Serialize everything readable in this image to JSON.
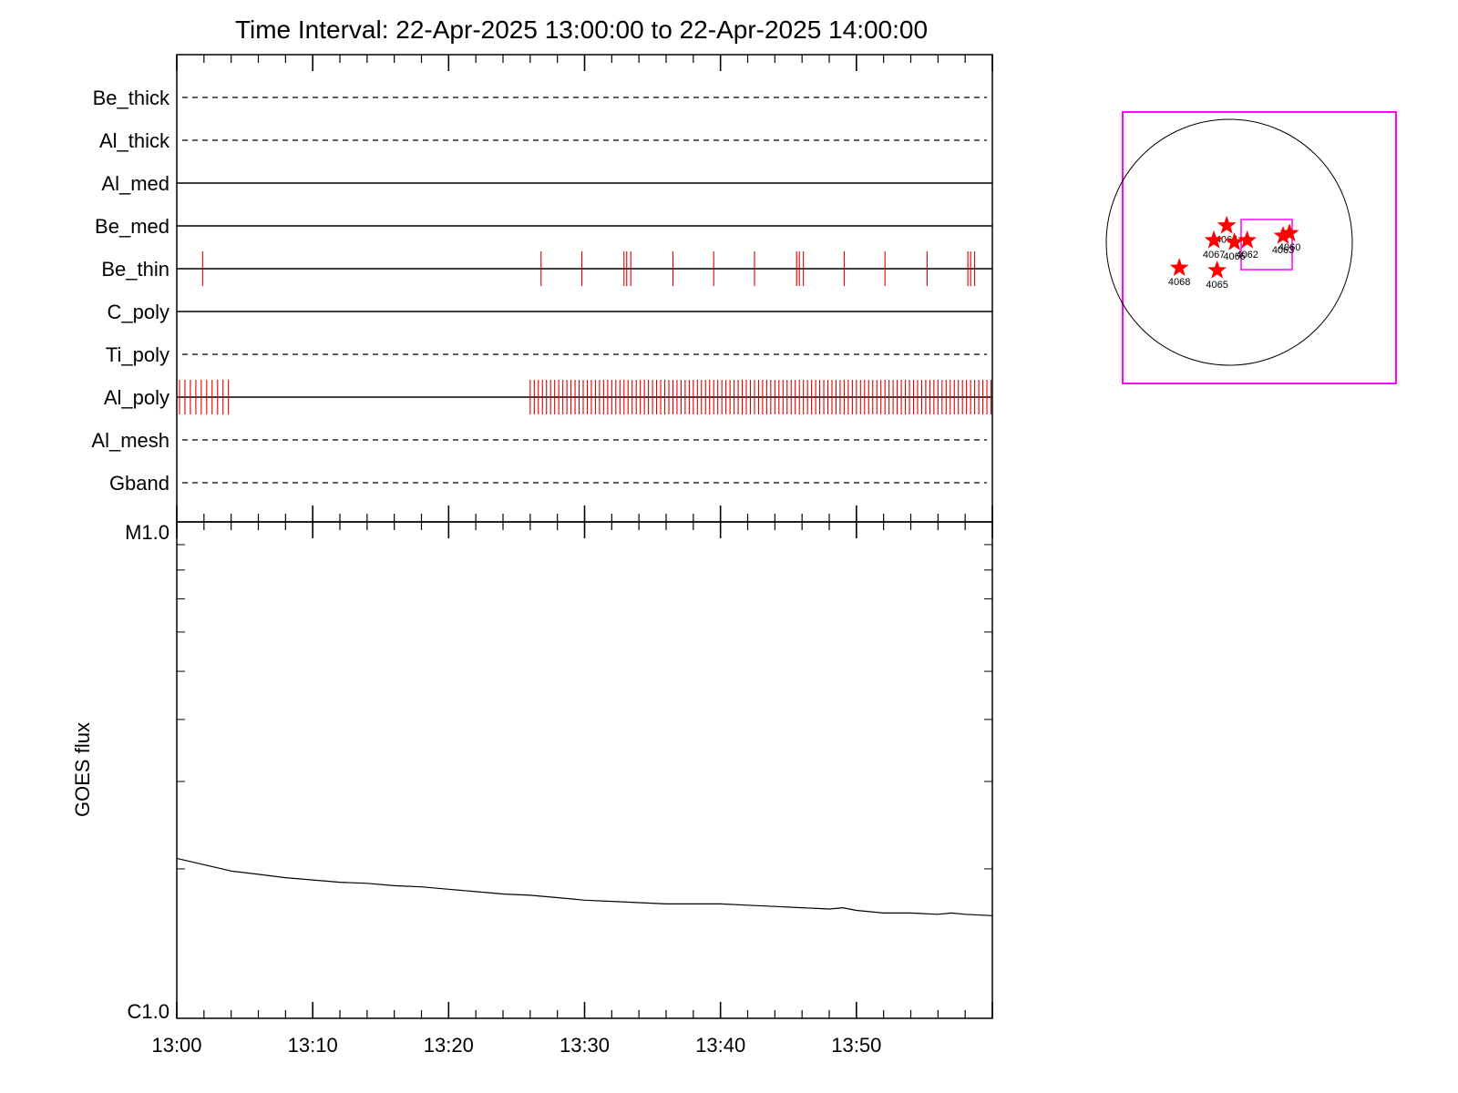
{
  "chart_data": [
    {
      "type": "timeline",
      "title": "Time Interval: 22-Apr-2025 13:00:00 to 22-Apr-2025 14:00:00",
      "xlim": [
        "13:00",
        "14:00"
      ],
      "channels": [
        {
          "name": "Be_thick",
          "style": "dashed",
          "events_min": []
        },
        {
          "name": "Al_thick",
          "style": "dashed",
          "events_min": []
        },
        {
          "name": "Al_med",
          "style": "solid",
          "events_min": []
        },
        {
          "name": "Be_med",
          "style": "solid",
          "events_min": []
        },
        {
          "name": "Be_thin",
          "style": "solid",
          "events_min": [
            1.9,
            26.8,
            29.8,
            32.9,
            33.1,
            33.4,
            36.5,
            39.5,
            42.5,
            45.6,
            45.8,
            46.1,
            49.1,
            52.1,
            55.2,
            58.2,
            58.4,
            58.7
          ]
        },
        {
          "name": "C_poly",
          "style": "solid",
          "events_min": []
        },
        {
          "name": "Ti_poly",
          "style": "dashed",
          "events_min": []
        },
        {
          "name": "Al_poly",
          "style": "solid",
          "events_min": [
            0.2,
            0.6,
            1.0,
            1.4,
            1.8,
            2.2,
            2.6,
            3.0,
            3.4,
            3.8,
            26.0,
            26.3,
            26.6,
            26.9,
            27.2,
            27.5,
            27.8,
            28.1,
            28.4,
            28.7,
            29.0,
            29.3,
            29.6,
            29.9,
            30.2,
            30.5,
            30.8,
            31.1,
            31.4,
            31.7,
            32.0,
            32.3,
            32.6,
            32.9,
            33.2,
            33.5,
            33.8,
            34.1,
            34.4,
            34.7,
            35.0,
            35.3,
            35.6,
            35.9,
            36.2,
            36.5,
            36.8,
            37.1,
            37.4,
            37.7,
            38.0,
            38.3,
            38.6,
            38.9,
            39.2,
            39.5,
            39.8,
            40.1,
            40.4,
            40.7,
            41.0,
            41.3,
            41.6,
            41.9,
            42.2,
            42.5,
            42.8,
            43.1,
            43.4,
            43.7,
            44.0,
            44.3,
            44.6,
            44.9,
            45.2,
            45.5,
            45.8,
            46.1,
            46.4,
            46.7,
            47.0,
            47.3,
            47.6,
            47.9,
            48.2,
            48.5,
            48.8,
            49.1,
            49.4,
            49.7,
            50.0,
            50.3,
            50.6,
            50.9,
            51.2,
            51.5,
            51.8,
            52.1,
            52.4,
            52.7,
            53.0,
            53.3,
            53.6,
            53.9,
            54.2,
            54.5,
            54.8,
            55.1,
            55.4,
            55.7,
            56.0,
            56.3,
            56.6,
            56.9,
            57.2,
            57.5,
            57.8,
            58.1,
            58.4,
            58.7,
            59.0,
            59.3,
            59.6,
            59.9
          ]
        },
        {
          "name": "Al_mesh",
          "style": "dashed",
          "events_min": []
        },
        {
          "name": "Gband",
          "style": "dashed",
          "events_min": []
        }
      ]
    },
    {
      "type": "line",
      "ylabel": "GOES flux",
      "yscale": "log",
      "ylim": [
        1e-06,
        1e-05
      ],
      "y_tick_labels": [
        "M1.0",
        "C1.0"
      ],
      "x_tick_labels": [
        "13:00",
        "13:10",
        "13:20",
        "13:30",
        "13:40",
        "13:50"
      ],
      "x_ticks_min": [
        0,
        10,
        20,
        30,
        40,
        50
      ],
      "xlim": [
        0,
        60
      ],
      "series": [
        {
          "x": [
            0,
            2,
            4,
            6,
            8,
            10,
            12,
            14,
            16,
            18,
            20,
            22,
            24,
            26,
            28,
            30,
            32,
            34,
            36,
            38,
            40,
            42,
            44,
            46,
            48,
            49,
            50,
            52,
            54,
            56,
            57,
            58,
            60
          ],
          "y": [
            2.1e-06,
            2.04e-06,
            1.98e-06,
            1.95e-06,
            1.92e-06,
            1.9e-06,
            1.88e-06,
            1.87e-06,
            1.85e-06,
            1.84e-06,
            1.82e-06,
            1.8e-06,
            1.78e-06,
            1.77e-06,
            1.75e-06,
            1.73e-06,
            1.72e-06,
            1.71e-06,
            1.7e-06,
            1.7e-06,
            1.7e-06,
            1.69e-06,
            1.68e-06,
            1.67e-06,
            1.66e-06,
            1.67e-06,
            1.65e-06,
            1.63e-06,
            1.63e-06,
            1.62e-06,
            1.63e-06,
            1.62e-06,
            1.61e-06
          ]
        }
      ]
    },
    {
      "type": "scatter",
      "subject": "solar disk",
      "markers": [
        {
          "label": "4064",
          "x": -20,
          "y": 130
        },
        {
          "label": "4067",
          "x": -120,
          "y": 15
        },
        {
          "label": "4066",
          "x": 40,
          "y": 0
        },
        {
          "label": "4062",
          "x": 140,
          "y": 15
        },
        {
          "label": "4063",
          "x": 420,
          "y": 50
        },
        {
          "label": "4060",
          "x": 470,
          "y": 70
        },
        {
          "label": "4068",
          "x": -390,
          "y": -200
        },
        {
          "label": "4065",
          "x": -95,
          "y": -220
        }
      ]
    }
  ],
  "colors": {
    "event": "#e00000",
    "marker": "#ff0000",
    "box": "#ff00ff",
    "axis": "#000000"
  }
}
